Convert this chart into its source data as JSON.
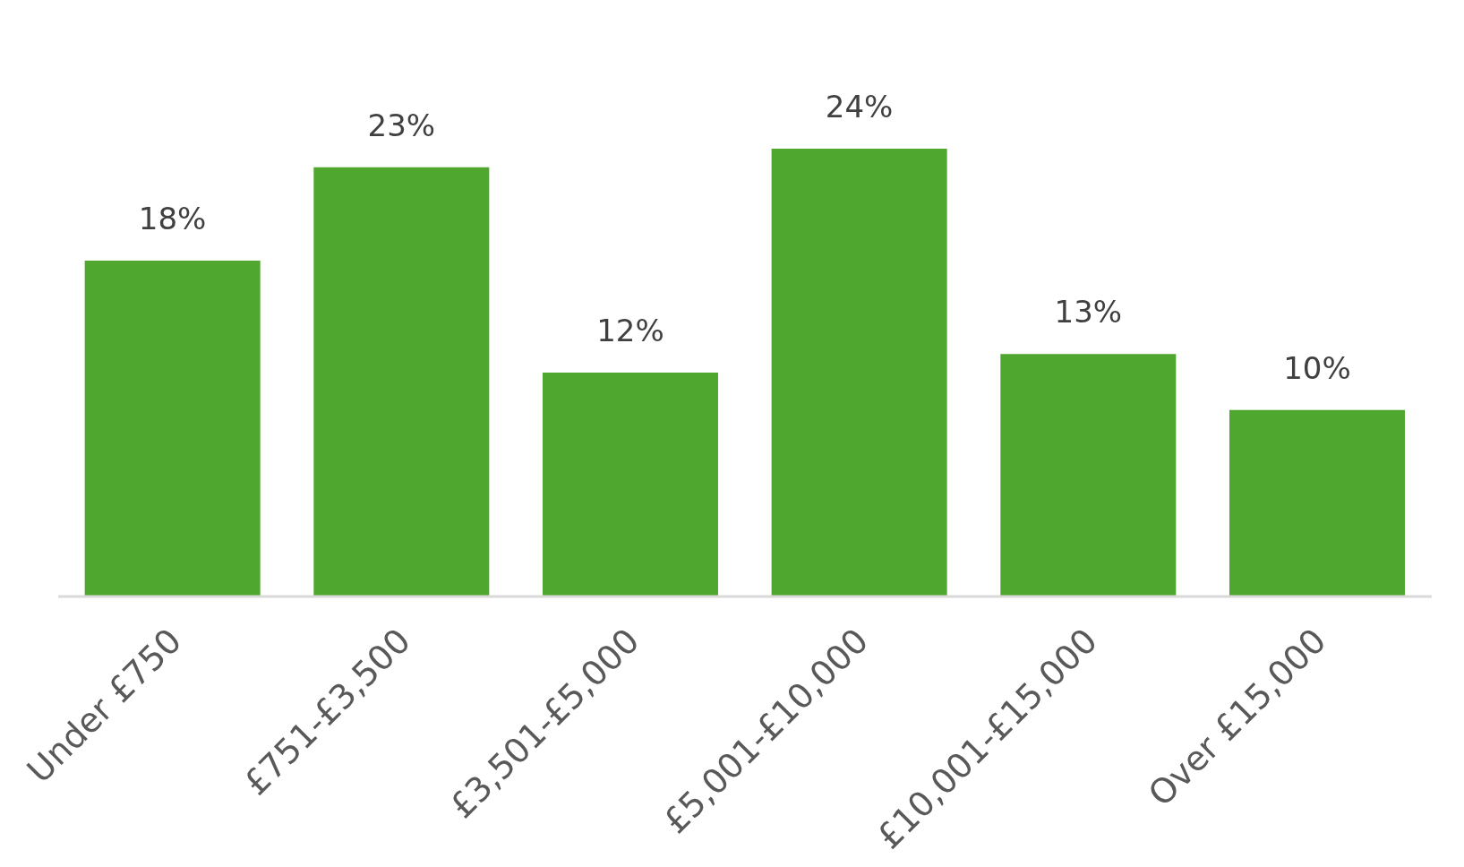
{
  "chart_data": {
    "type": "bar",
    "categories": [
      "Under £750",
      "£751-£3,500",
      "£3,501-£5,000",
      "£5,001-£10,000",
      "£10,001-£15,000",
      "Over £15,000"
    ],
    "values": [
      18,
      23,
      12,
      24,
      13,
      10
    ],
    "value_labels": [
      "18%",
      "23%",
      "12%",
      "24%",
      "13%",
      "10%"
    ],
    "color": "#4fa72f",
    "tick_labels": "x"
  }
}
